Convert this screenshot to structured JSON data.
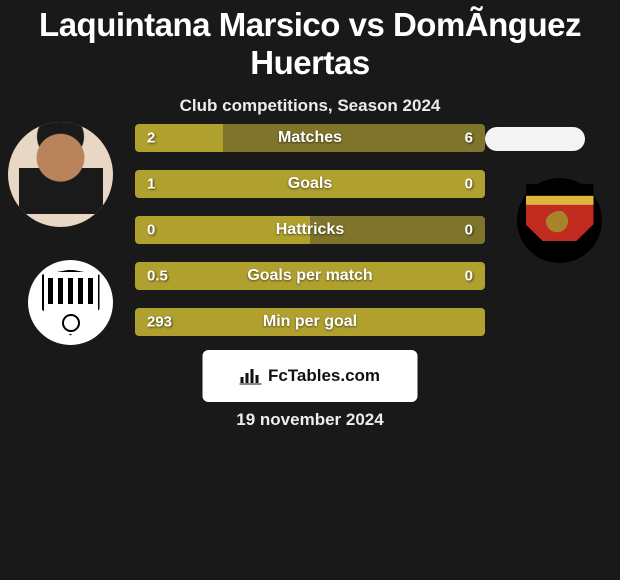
{
  "title": "Laquintana Marsico vs DomÃ­nguez Huertas",
  "subtitle": "Club competitions, Season 2024",
  "date": "19 november 2024",
  "footer_brand": "FcTables.com",
  "colors": {
    "bar_a": "#b0a12f",
    "bar_b": "#7e742b",
    "bg": "#191919"
  },
  "bars": [
    {
      "label": "Matches",
      "a": "2",
      "b": "6",
      "a_pct": 25,
      "b_pct": 75
    },
    {
      "label": "Goals",
      "a": "1",
      "b": "0",
      "a_pct": 100,
      "b_pct": 0
    },
    {
      "label": "Hattricks",
      "a": "0",
      "b": "0",
      "a_pct": 50,
      "b_pct": 50
    },
    {
      "label": "Goals per match",
      "a": "0.5",
      "b": "0",
      "a_pct": 100,
      "b_pct": 0
    },
    {
      "label": "Min per goal",
      "a": "293",
      "b": "",
      "a_pct": 100,
      "b_pct": 0
    }
  ]
}
